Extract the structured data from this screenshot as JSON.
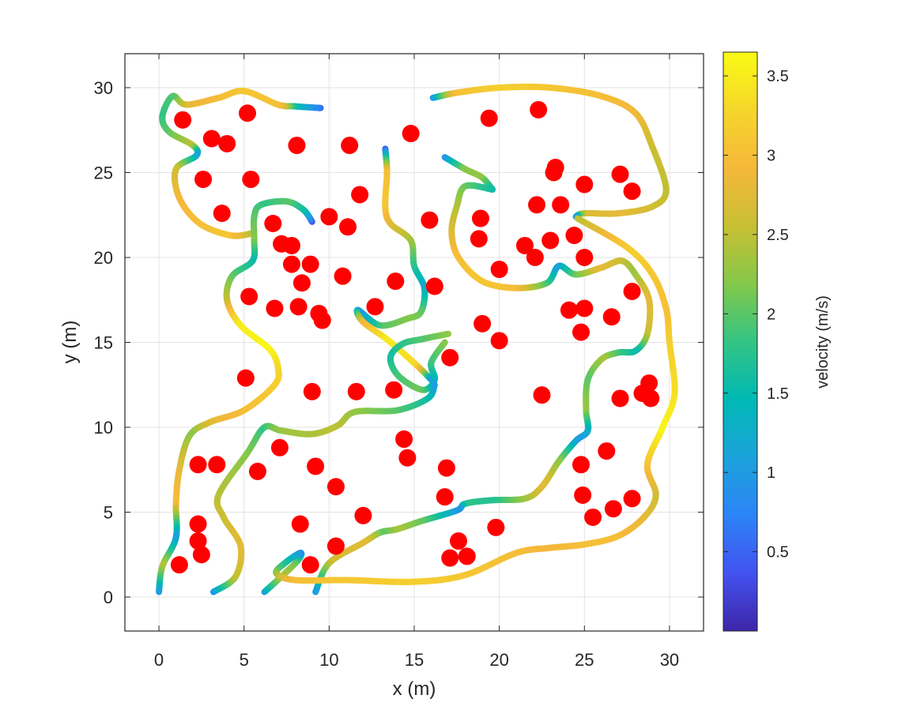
{
  "chart_data": {
    "type": "scatter",
    "xlabel": "x (m)",
    "ylabel": "y (m)",
    "xlim": [
      -2,
      32
    ],
    "ylim": [
      -2,
      32
    ],
    "xticks": [
      0,
      5,
      10,
      15,
      20,
      25,
      30
    ],
    "yticks": [
      0,
      5,
      10,
      15,
      20,
      25,
      30
    ],
    "grid": true,
    "colorbar": {
      "label": "velocity (m/s)",
      "range": [
        0,
        3.65
      ],
      "ticks": [
        0.5,
        1,
        1.5,
        2,
        2.5,
        3,
        3.5
      ]
    },
    "colors": {
      "obstacle": "#ff0000",
      "colormap": [
        "#3e26a8",
        "#4352f0",
        "#2c84f7",
        "#1ba3da",
        "#00b9b4",
        "#33c484",
        "#84c84a",
        "#c8bf32",
        "#f5b83b",
        "#f5d62a",
        "#f9fb15"
      ]
    },
    "obstacles": [
      [
        1.4,
        28.1
      ],
      [
        5.2,
        28.5
      ],
      [
        3.1,
        27.0
      ],
      [
        4.0,
        26.7
      ],
      [
        8.1,
        26.6
      ],
      [
        11.2,
        26.6
      ],
      [
        14.8,
        27.3
      ],
      [
        19.4,
        28.2
      ],
      [
        22.3,
        28.7
      ],
      [
        2.6,
        24.6
      ],
      [
        5.4,
        24.6
      ],
      [
        11.8,
        23.7
      ],
      [
        23.3,
        25.3
      ],
      [
        23.2,
        25.0
      ],
      [
        25.0,
        24.3
      ],
      [
        27.1,
        24.9
      ],
      [
        27.8,
        23.9
      ],
      [
        3.7,
        22.6
      ],
      [
        6.7,
        22.0
      ],
      [
        10.0,
        22.4
      ],
      [
        11.1,
        21.8
      ],
      [
        15.9,
        22.2
      ],
      [
        18.9,
        22.3
      ],
      [
        22.2,
        23.1
      ],
      [
        23.6,
        23.1
      ],
      [
        7.2,
        20.8
      ],
      [
        7.8,
        20.7
      ],
      [
        7.8,
        19.6
      ],
      [
        8.9,
        19.6
      ],
      [
        18.8,
        21.1
      ],
      [
        21.5,
        20.7
      ],
      [
        22.1,
        20.0
      ],
      [
        23.0,
        21.0
      ],
      [
        24.4,
        21.3
      ],
      [
        25.0,
        20.0
      ],
      [
        8.4,
        18.5
      ],
      [
        10.8,
        18.9
      ],
      [
        13.9,
        18.6
      ],
      [
        16.2,
        18.3
      ],
      [
        20.0,
        19.3
      ],
      [
        27.8,
        18.0
      ],
      [
        5.3,
        17.7
      ],
      [
        6.8,
        17.0
      ],
      [
        8.2,
        17.1
      ],
      [
        9.4,
        16.7
      ],
      [
        9.6,
        16.3
      ],
      [
        12.7,
        17.1
      ],
      [
        19.0,
        16.1
      ],
      [
        24.1,
        16.9
      ],
      [
        25.0,
        17.0
      ],
      [
        24.8,
        15.6
      ],
      [
        26.6,
        16.5
      ],
      [
        20.0,
        15.1
      ],
      [
        17.1,
        14.1
      ],
      [
        5.1,
        12.9
      ],
      [
        9.0,
        12.1
      ],
      [
        11.6,
        12.1
      ],
      [
        13.8,
        12.2
      ],
      [
        22.5,
        11.9
      ],
      [
        27.1,
        11.7
      ],
      [
        28.8,
        12.6
      ],
      [
        28.4,
        12.0
      ],
      [
        28.9,
        11.7
      ],
      [
        14.4,
        9.3
      ],
      [
        7.1,
        8.8
      ],
      [
        14.6,
        8.2
      ],
      [
        2.3,
        7.8
      ],
      [
        3.4,
        7.8
      ],
      [
        9.2,
        7.7
      ],
      [
        16.9,
        7.6
      ],
      [
        5.8,
        7.4
      ],
      [
        24.8,
        7.8
      ],
      [
        26.3,
        8.6
      ],
      [
        10.4,
        6.5
      ],
      [
        16.8,
        5.9
      ],
      [
        24.9,
        6.0
      ],
      [
        27.8,
        5.8
      ],
      [
        26.7,
        5.2
      ],
      [
        25.5,
        4.7
      ],
      [
        12.0,
        4.8
      ],
      [
        2.3,
        4.3
      ],
      [
        8.3,
        4.3
      ],
      [
        19.8,
        4.1
      ],
      [
        2.3,
        3.3
      ],
      [
        10.4,
        3.0
      ],
      [
        17.6,
        3.3
      ],
      [
        2.5,
        2.5
      ],
      [
        17.1,
        2.3
      ],
      [
        18.1,
        2.4
      ],
      [
        1.2,
        1.9
      ],
      [
        8.9,
        1.9
      ]
    ],
    "trajectories": [
      {
        "points": [
          [
            9.5,
            28.8
          ],
          [
            8.0,
            28.9
          ],
          [
            7.0,
            29.0
          ],
          [
            5.0,
            29.8
          ],
          [
            3.5,
            29.4
          ],
          [
            1.6,
            29.0
          ],
          [
            0.8,
            29.5
          ],
          [
            0.2,
            28.3
          ],
          [
            0.6,
            27.4
          ],
          [
            2.0,
            26.6
          ],
          [
            2.2,
            26.0
          ],
          [
            1.0,
            25.2
          ],
          [
            1.2,
            23.5
          ],
          [
            2.4,
            22.0
          ],
          [
            4.2,
            21.3
          ],
          [
            5.4,
            21.4
          ]
        ],
        "speeds": [
          0.5,
          1.5,
          3.0,
          3.1,
          3.0,
          2.8,
          2.0,
          1.8,
          2.0,
          2.5,
          1.0,
          2.6,
          2.9,
          3.0,
          3.1,
          2.5
        ]
      },
      {
        "points": [
          [
            9.0,
            22.1
          ],
          [
            8.5,
            22.8
          ],
          [
            7.5,
            23.3
          ],
          [
            6.0,
            23.1
          ],
          [
            5.6,
            22.4
          ],
          [
            5.6,
            21.0
          ],
          [
            5.5,
            19.8
          ],
          [
            4.3,
            18.9
          ],
          [
            4.0,
            17.5
          ],
          [
            4.8,
            16.0
          ],
          [
            6.5,
            14.6
          ],
          [
            7.0,
            13.5
          ],
          [
            6.8,
            12.5
          ],
          [
            5.0,
            11.0
          ],
          [
            3.0,
            10.3
          ],
          [
            1.8,
            9.5
          ],
          [
            1.2,
            7.5
          ],
          [
            1.0,
            5.5
          ],
          [
            1.0,
            3.5
          ],
          [
            0.2,
            1.8
          ],
          [
            0.0,
            0.3
          ]
        ],
        "speeds": [
          0.3,
          1.5,
          2.0,
          1.8,
          2.0,
          2.2,
          1.5,
          2.0,
          2.5,
          3.5,
          3.6,
          3.3,
          3.2,
          3.0,
          2.8,
          2.2,
          2.8,
          3.0,
          1.0,
          2.5,
          1.0
        ]
      },
      {
        "points": [
          [
            16.8,
            25.9
          ],
          [
            18.0,
            25.2
          ],
          [
            19.0,
            24.7
          ],
          [
            19.6,
            24.0
          ]
        ],
        "speeds": [
          0.8,
          2.2,
          2.3,
          1.5
        ]
      },
      {
        "points": [
          [
            13.3,
            26.4
          ],
          [
            13.4,
            25.0
          ],
          [
            13.3,
            23.0
          ],
          [
            13.6,
            22.0
          ],
          [
            14.8,
            21.0
          ],
          [
            15.0,
            19.5
          ],
          [
            15.6,
            18.2
          ],
          [
            15.4,
            16.8
          ],
          [
            14.6,
            16.4
          ],
          [
            13.0,
            16.0
          ],
          [
            11.7,
            16.9
          ],
          [
            12.0,
            16.2
          ],
          [
            13.5,
            15.1
          ],
          [
            15.2,
            13.6
          ],
          [
            16.0,
            12.8
          ]
        ],
        "speeds": [
          0.3,
          3.0,
          3.1,
          2.8,
          2.4,
          1.8,
          1.2,
          2.0,
          2.2,
          2.0,
          0.8,
          2.8,
          3.5,
          3.3,
          1.0
        ]
      },
      {
        "points": [
          [
            17.0,
            15.5
          ],
          [
            15.5,
            15.2
          ],
          [
            14.3,
            14.9
          ],
          [
            13.6,
            14.1
          ],
          [
            14.1,
            13.0
          ],
          [
            15.5,
            12.2
          ],
          [
            16.2,
            12.8
          ],
          [
            16.0,
            13.8
          ],
          [
            16.8,
            15.0
          ]
        ],
        "speeds": [
          2.3,
          2.0,
          1.8,
          1.6,
          1.9,
          2.1,
          1.2,
          1.8,
          2.2
        ]
      },
      {
        "points": [
          [
            16.1,
            29.4
          ],
          [
            17.5,
            29.7
          ],
          [
            20.0,
            30.0
          ],
          [
            23.0,
            30.0
          ],
          [
            26.0,
            29.5
          ],
          [
            28.0,
            28.5
          ],
          [
            29.0,
            26.5
          ],
          [
            29.8,
            24.0
          ],
          [
            29.0,
            23.0
          ],
          [
            27.0,
            22.6
          ],
          [
            25.0,
            22.6
          ],
          [
            24.5,
            22.4
          ]
        ],
        "speeds": [
          0.7,
          3.0,
          3.2,
          3.1,
          3.0,
          2.9,
          2.6,
          2.5,
          2.6,
          2.8,
          2.7,
          1.0
        ]
      },
      {
        "points": [
          [
            19.6,
            24.0
          ],
          [
            18.0,
            24.2
          ],
          [
            17.5,
            23.0
          ],
          [
            17.2,
            21.5
          ],
          [
            17.6,
            20.0
          ],
          [
            19.0,
            18.6
          ],
          [
            21.0,
            18.2
          ],
          [
            22.8,
            18.5
          ],
          [
            23.5,
            19.5
          ],
          [
            24.5,
            19.0
          ],
          [
            26.0,
            19.4
          ],
          [
            27.2,
            19.8
          ],
          [
            28.0,
            19.0
          ],
          [
            28.8,
            17.5
          ],
          [
            28.7,
            15.5
          ],
          [
            28.0,
            14.5
          ],
          [
            27.0,
            14.4
          ],
          [
            26.0,
            14.0
          ],
          [
            25.2,
            12.8
          ],
          [
            25.1,
            11.0
          ],
          [
            25.2,
            9.8
          ],
          [
            24.5,
            9.2
          ],
          [
            23.5,
            8.0
          ],
          [
            22.5,
            6.5
          ],
          [
            21.5,
            5.8
          ],
          [
            19.5,
            5.7
          ],
          [
            18.0,
            5.5
          ],
          [
            17.5,
            5.1
          ],
          [
            15.5,
            4.5
          ],
          [
            14.0,
            4.0
          ],
          [
            13.0,
            3.8
          ],
          [
            12.0,
            3.2
          ],
          [
            10.0,
            2.0
          ],
          [
            9.2,
            0.3
          ]
        ],
        "speeds": [
          1.5,
          2.0,
          2.4,
          2.7,
          3.0,
          3.1,
          3.0,
          2.0,
          1.0,
          2.0,
          2.8,
          2.6,
          2.3,
          2.8,
          2.6,
          1.5,
          1.8,
          2.4,
          2.0,
          2.3,
          1.3,
          1.0,
          2.2,
          2.8,
          2.4,
          1.7,
          1.8,
          0.9,
          2.0,
          2.4,
          2.0,
          2.8,
          2.6,
          1.0
        ]
      },
      {
        "points": [
          [
            3.2,
            0.3
          ],
          [
            4.5,
            1.2
          ],
          [
            4.8,
            3.0
          ],
          [
            3.8,
            4.7
          ],
          [
            3.5,
            6.0
          ],
          [
            5.2,
            8.5
          ],
          [
            6.2,
            10.0
          ],
          [
            7.2,
            9.8
          ],
          [
            9.0,
            9.6
          ],
          [
            10.5,
            10.1
          ],
          [
            11.5,
            10.9
          ],
          [
            14.0,
            11.0
          ],
          [
            15.8,
            11.7
          ],
          [
            16.2,
            12.5
          ]
        ],
        "speeds": [
          0.8,
          2.5,
          2.8,
          2.6,
          2.5,
          2.2,
          1.8,
          2.3,
          2.4,
          2.5,
          2.3,
          2.0,
          1.6,
          1.0
        ]
      },
      {
        "points": [
          [
            6.2,
            0.3
          ],
          [
            7.3,
            1.3
          ],
          [
            8.2,
            2.2
          ],
          [
            8.3,
            2.6
          ],
          [
            7.4,
            2.0
          ],
          [
            6.9,
            1.4
          ],
          [
            8.0,
            1.0
          ],
          [
            11.0,
            1.0
          ],
          [
            15.0,
            0.9
          ],
          [
            18.0,
            1.3
          ],
          [
            21.0,
            2.6
          ],
          [
            23.0,
            2.9
          ],
          [
            25.0,
            3.1
          ],
          [
            27.0,
            3.6
          ],
          [
            28.5,
            4.7
          ],
          [
            29.2,
            6.0
          ],
          [
            28.7,
            7.8
          ],
          [
            29.6,
            10.0
          ],
          [
            30.3,
            12.0
          ],
          [
            30.0,
            15.0
          ],
          [
            29.8,
            17.0
          ],
          [
            29.0,
            19.0
          ],
          [
            27.5,
            20.6
          ],
          [
            24.6,
            22.3
          ]
        ],
        "speeds": [
          1.0,
          2.5,
          2.0,
          0.8,
          1.6,
          2.2,
          3.0,
          3.1,
          3.2,
          3.1,
          3.0,
          2.9,
          3.0,
          3.0,
          2.8,
          2.6,
          3.0,
          3.6,
          3.4,
          3.2,
          3.0,
          3.1,
          3.2,
          2.5
        ]
      }
    ]
  }
}
